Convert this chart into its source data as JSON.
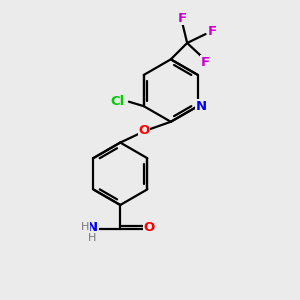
{
  "background_color": "#ebebeb",
  "bond_color": "#000000",
  "atom_colors": {
    "N": "#0000ff",
    "O": "#ff0000",
    "Cl": "#00cc00",
    "F": "#cc00cc",
    "H": "#777777",
    "C": "#000000"
  },
  "figsize": [
    3.0,
    3.0
  ],
  "dpi": 100
}
